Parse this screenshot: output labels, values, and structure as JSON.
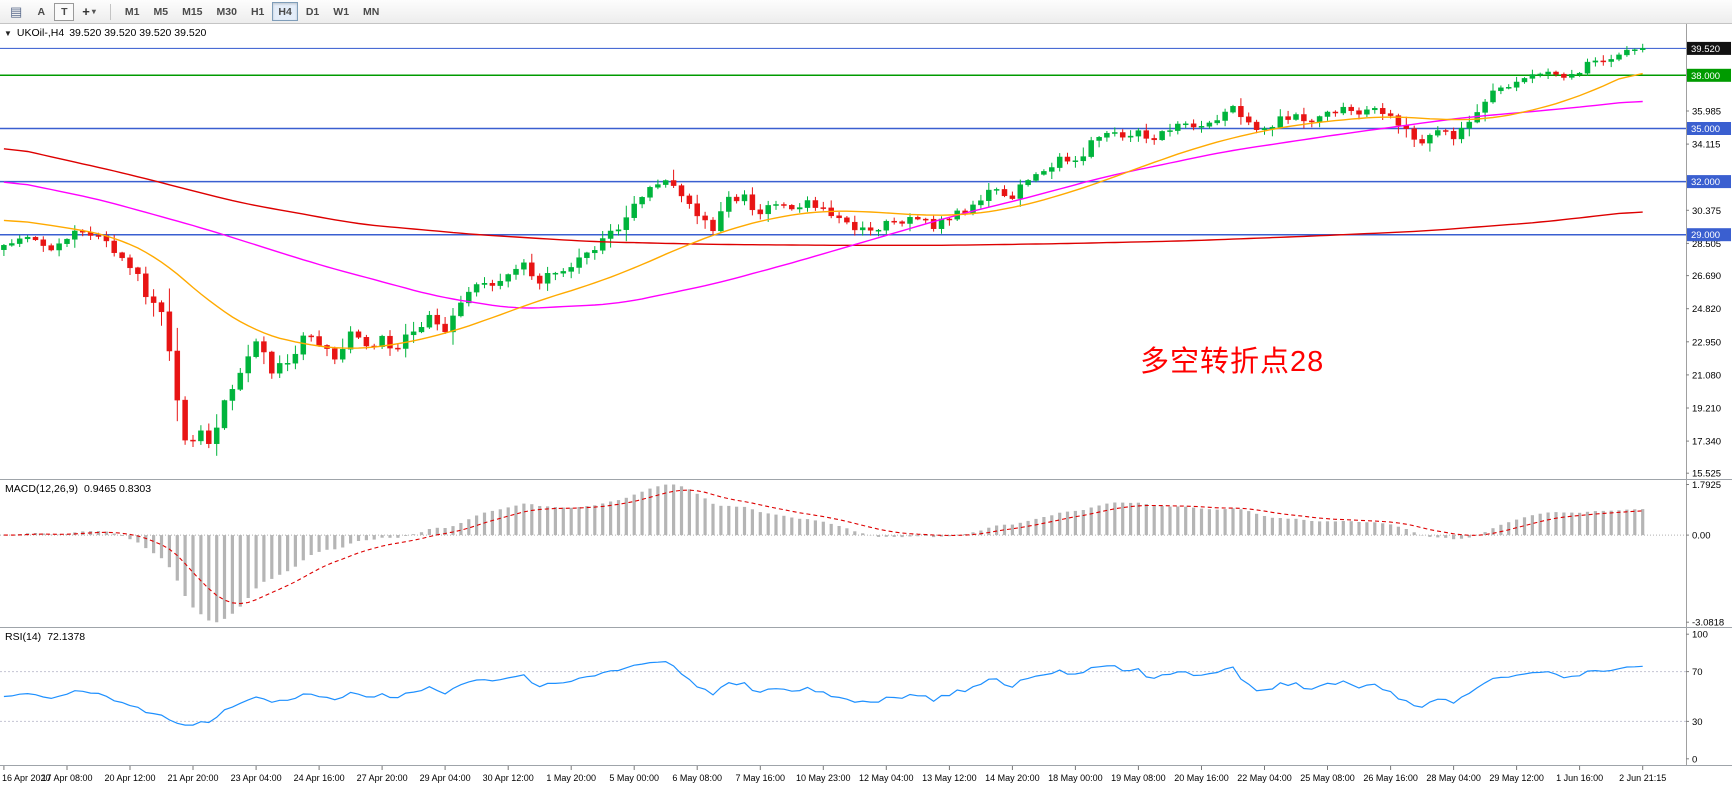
{
  "toolbar": {
    "a_label": "A",
    "t_label": "T",
    "timeframes": [
      "M1",
      "M5",
      "M15",
      "M30",
      "H1",
      "H4",
      "D1",
      "W1",
      "MN"
    ],
    "active_timeframe": "H4"
  },
  "icons": {
    "charts_list": "▤",
    "crosshair": "+",
    "dropdown_caret": "▾",
    "chart_menu_arrow": "▼"
  },
  "quote_line": {
    "symbol_period": "UKOil-,H4",
    "ohlc": "39.520 39.520 39.520 39.520"
  },
  "annotation": {
    "text": "多空转折点28",
    "color": "#ff0000"
  },
  "colors": {
    "up_candle": "#00b43c",
    "down_candle": "#e81414",
    "blue_hline": "#3a5fd0",
    "green_hline": "#009b00",
    "price_line": "#4a6cd4",
    "price_badge": "#111111",
    "ma_red": "#dd0000",
    "ma_magenta": "#ff00ff",
    "ma_orange": "#ffaa00",
    "macd_histogram": "#b5b5b5",
    "macd_signal": "#dd0000",
    "rsi_line": "#1e90ff"
  },
  "chart_data": [
    {
      "type": "candlestick",
      "symbol": "UKOil-",
      "timeframe": "H4",
      "ylim": [
        15.2,
        40.9
      ],
      "y_ticks": [
        35.985,
        34.115,
        30.375,
        28.505,
        26.69,
        24.82,
        22.95,
        21.08,
        19.21,
        17.34,
        15.525
      ],
      "price_line": {
        "value": 39.52,
        "label": "39.520"
      },
      "hlines": [
        {
          "value": 38.0,
          "label": "38.000",
          "color": "#009b00"
        },
        {
          "value": 35.0,
          "label": "35.000",
          "color": "#3a5fd0"
        },
        {
          "value": 32.0,
          "label": "32.000",
          "color": "#3a5fd0"
        },
        {
          "value": 29.0,
          "label": "29.000",
          "color": "#3a5fd0"
        }
      ],
      "bars_total": 209,
      "right_gap_bars": 5,
      "x_label_step": 8,
      "x_labels": [
        "16 Apr 2020",
        "17 Apr 08:00",
        "20 Apr 12:00",
        "21 Apr 20:00",
        "23 Apr 04:00",
        "24 Apr 16:00",
        "27 Apr 20:00",
        "29 Apr 04:00",
        "30 Apr 12:00",
        "1 May 20:00",
        "5 May 00:00",
        "6 May 08:00",
        "7 May 16:00",
        "10 May 23:00",
        "12 May 04:00",
        "13 May 12:00",
        "14 May 20:00",
        "18 May 00:00",
        "19 May 08:00",
        "20 May 16:00",
        "22 May 04:00",
        "25 May 08:00",
        "26 May 16:00",
        "28 May 04:00",
        "29 May 12:00",
        "1 Jun 16:00",
        "2 Jun 21:15"
      ],
      "price_path": [
        [
          0,
          28.3
        ],
        [
          2,
          28.9
        ],
        [
          4,
          28.5
        ],
        [
          6,
          28.1
        ],
        [
          8,
          28.6
        ],
        [
          10,
          29.3
        ],
        [
          12,
          28.9
        ],
        [
          14,
          28.2
        ],
        [
          16,
          27.2
        ],
        [
          18,
          25.8
        ],
        [
          20,
          24.0
        ],
        [
          22,
          20.5
        ],
        [
          23,
          18.2
        ],
        [
          24,
          17.2
        ],
        [
          25,
          17.8
        ],
        [
          26,
          17.0
        ],
        [
          27,
          18.6
        ],
        [
          28,
          19.8
        ],
        [
          30,
          21.2
        ],
        [
          32,
          22.8
        ],
        [
          33,
          22.2
        ],
        [
          34,
          21.3
        ],
        [
          36,
          21.9
        ],
        [
          38,
          23.2
        ],
        [
          40,
          22.9
        ],
        [
          42,
          22.1
        ],
        [
          44,
          23.3
        ],
        [
          46,
          22.7
        ],
        [
          48,
          23.1
        ],
        [
          50,
          22.4
        ],
        [
          52,
          23.6
        ],
        [
          54,
          24.4
        ],
        [
          56,
          23.7
        ],
        [
          58,
          25.2
        ],
        [
          60,
          26.4
        ],
        [
          62,
          26.1
        ],
        [
          64,
          26.9
        ],
        [
          66,
          27.4
        ],
        [
          68,
          26.4
        ],
        [
          70,
          26.9
        ],
        [
          72,
          27.1
        ],
        [
          74,
          27.9
        ],
        [
          76,
          28.7
        ],
        [
          78,
          29.6
        ],
        [
          80,
          30.9
        ],
        [
          82,
          31.6
        ],
        [
          84,
          32.1
        ],
        [
          86,
          31.0
        ],
        [
          88,
          30.1
        ],
        [
          90,
          29.3
        ],
        [
          92,
          30.9
        ],
        [
          94,
          31.2
        ],
        [
          96,
          30.2
        ],
        [
          98,
          30.8
        ],
        [
          100,
          30.4
        ],
        [
          102,
          30.9
        ],
        [
          104,
          30.5
        ],
        [
          106,
          30.0
        ],
        [
          108,
          29.5
        ],
        [
          110,
          29.2
        ],
        [
          112,
          29.8
        ],
        [
          114,
          29.5
        ],
        [
          116,
          30.0
        ],
        [
          118,
          29.5
        ],
        [
          120,
          29.9
        ],
        [
          122,
          30.5
        ],
        [
          124,
          31.1
        ],
        [
          126,
          31.5
        ],
        [
          128,
          31.2
        ],
        [
          130,
          32.1
        ],
        [
          132,
          32.7
        ],
        [
          134,
          33.3
        ],
        [
          136,
          33.1
        ],
        [
          138,
          34.3
        ],
        [
          140,
          34.9
        ],
        [
          142,
          34.4
        ],
        [
          144,
          34.7
        ],
        [
          146,
          34.2
        ],
        [
          148,
          34.9
        ],
        [
          150,
          35.3
        ],
        [
          152,
          35.0
        ],
        [
          154,
          35.7
        ],
        [
          156,
          36.1
        ],
        [
          158,
          35.4
        ],
        [
          160,
          34.9
        ],
        [
          162,
          35.5
        ],
        [
          164,
          35.9
        ],
        [
          166,
          35.3
        ],
        [
          168,
          35.7
        ],
        [
          170,
          36.1
        ],
        [
          172,
          35.8
        ],
        [
          174,
          36.2
        ],
        [
          176,
          35.7
        ],
        [
          178,
          34.9
        ],
        [
          180,
          34.2
        ],
        [
          182,
          34.9
        ],
        [
          184,
          34.6
        ],
        [
          186,
          35.5
        ],
        [
          188,
          36.7
        ],
        [
          190,
          37.3
        ],
        [
          192,
          37.6
        ],
        [
          194,
          37.9
        ],
        [
          196,
          38.2
        ],
        [
          198,
          37.9
        ],
        [
          200,
          38.3
        ],
        [
          202,
          38.8
        ],
        [
          204,
          39.1
        ],
        [
          206,
          39.3
        ],
        [
          208,
          39.52
        ]
      ],
      "ma_lines": [
        {
          "name": "ma-slow-red",
          "color": "#dd0000",
          "points": [
            [
              0,
              34.0
            ],
            [
              15,
              32.5
            ],
            [
              30,
              30.8
            ],
            [
              45,
              29.6
            ],
            [
              60,
              29.0
            ],
            [
              75,
              28.6
            ],
            [
              90,
              28.45
            ],
            [
              105,
              28.4
            ],
            [
              120,
              28.4
            ],
            [
              135,
              28.5
            ],
            [
              150,
              28.65
            ],
            [
              165,
              28.9
            ],
            [
              180,
              29.2
            ],
            [
              195,
              29.7
            ],
            [
              208,
              30.35
            ]
          ]
        },
        {
          "name": "ma-mid-magenta",
          "color": "#ff00ff",
          "points": [
            [
              0,
              32.1
            ],
            [
              12,
              31.0
            ],
            [
              25,
              29.4
            ],
            [
              40,
              27.3
            ],
            [
              55,
              25.5
            ],
            [
              65,
              24.8
            ],
            [
              78,
              25.1
            ],
            [
              90,
              26.2
            ],
            [
              100,
              27.4
            ],
            [
              110,
              28.7
            ],
            [
              120,
              30.0
            ],
            [
              130,
              31.1
            ],
            [
              140,
              32.3
            ],
            [
              155,
              33.7
            ],
            [
              170,
              34.7
            ],
            [
              185,
              35.6
            ],
            [
              200,
              36.2
            ],
            [
              208,
              36.6
            ]
          ]
        },
        {
          "name": "ma-fast-orange",
          "color": "#ffaa00",
          "points": [
            [
              0,
              29.9
            ],
            [
              8,
              29.4
            ],
            [
              14,
              28.9
            ],
            [
              20,
              27.6
            ],
            [
              26,
              25.2
            ],
            [
              32,
              23.5
            ],
            [
              38,
              22.8
            ],
            [
              44,
              22.5
            ],
            [
              50,
              22.8
            ],
            [
              56,
              23.4
            ],
            [
              62,
              24.3
            ],
            [
              68,
              25.3
            ],
            [
              74,
              26.1
            ],
            [
              80,
              27.1
            ],
            [
              86,
              28.3
            ],
            [
              92,
              29.3
            ],
            [
              98,
              30.0
            ],
            [
              104,
              30.35
            ],
            [
              110,
              30.3
            ],
            [
              116,
              30.1
            ],
            [
              122,
              30.1
            ],
            [
              128,
              30.5
            ],
            [
              134,
              31.2
            ],
            [
              140,
              32.1
            ],
            [
              146,
              33.1
            ],
            [
              152,
              34.0
            ],
            [
              158,
              34.7
            ],
            [
              164,
              35.2
            ],
            [
              170,
              35.5
            ],
            [
              176,
              35.7
            ],
            [
              182,
              35.5
            ],
            [
              188,
              35.5
            ],
            [
              194,
              36.0
            ],
            [
              200,
              36.8
            ],
            [
              208,
              38.4
            ]
          ]
        }
      ]
    },
    {
      "type": "macd",
      "label": "MACD(12,26,9)",
      "values_text": "0.9465 0.8303",
      "params": [
        12,
        26,
        9
      ],
      "range": [
        -3.0818,
        1.7925
      ],
      "y_ticks": [
        {
          "v": 1.7925,
          "label": "1.7925"
        },
        {
          "v": 0,
          "label": "0.00"
        },
        {
          "v": -3.0818,
          "label": "-3.0818"
        }
      ]
    },
    {
      "type": "rsi",
      "label": "RSI(14)",
      "value_text": "72.1378",
      "period": 14,
      "levels": [
        70,
        30
      ],
      "display_range": [
        27,
        78
      ],
      "y_ticks": [
        {
          "v": 100,
          "label": "100"
        },
        {
          "v": 70,
          "label": "70"
        },
        {
          "v": 30,
          "label": "30"
        },
        {
          "v": 0,
          "label": "0"
        }
      ]
    }
  ]
}
